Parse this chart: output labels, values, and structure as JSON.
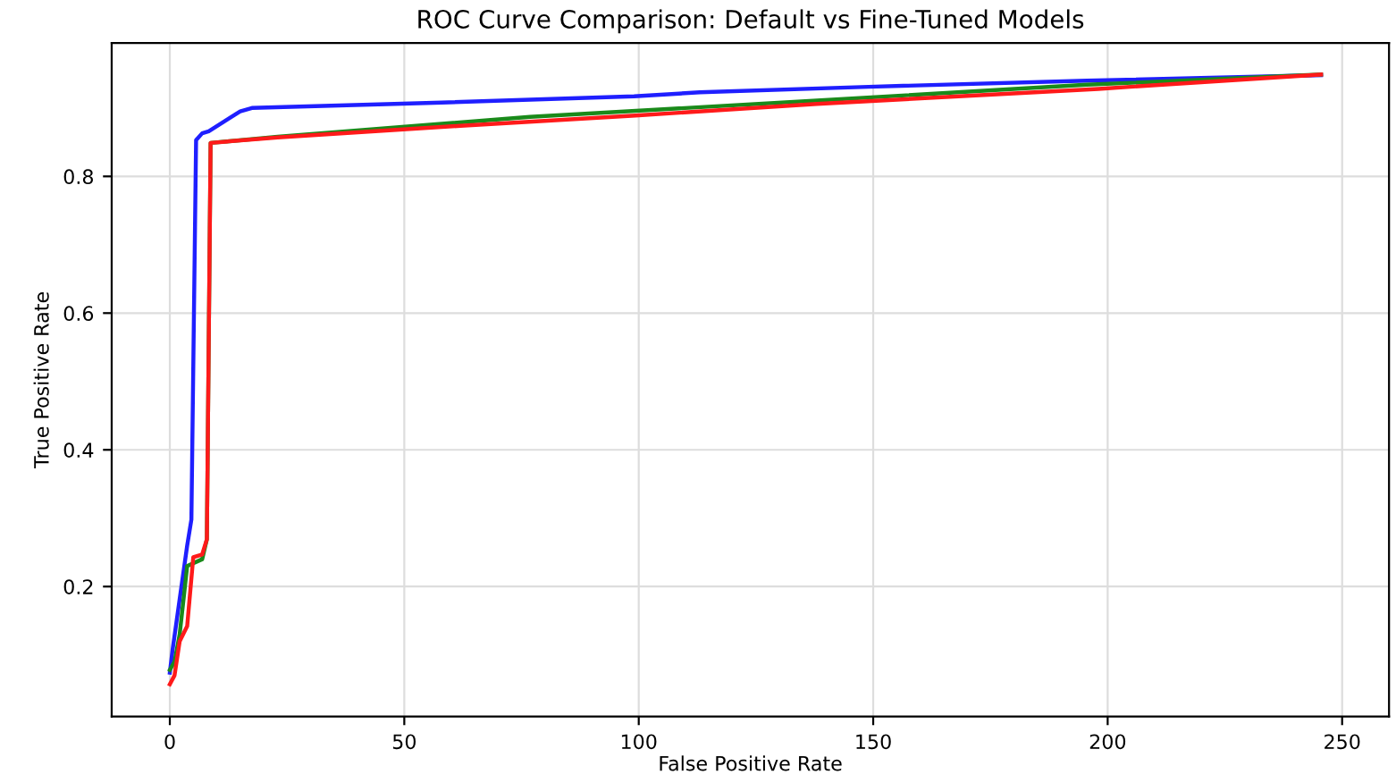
{
  "chart_data": {
    "type": "line",
    "title": "ROC Curve Comparison: Default vs Fine-Tuned Models",
    "xlabel": "False Positive Rate",
    "ylabel": "True Positive Rate",
    "xlim": [
      -12.4,
      260
    ],
    "ylim": [
      0.01,
      0.995
    ],
    "xticks": [
      0,
      50,
      100,
      150,
      200,
      250
    ],
    "yticks": [
      0.2,
      0.4,
      0.6,
      0.8
    ],
    "grid": true,
    "legend": false,
    "marker": "none",
    "line_style": "solid",
    "series": [
      {
        "color": "#1f1fff",
        "x": [
          0,
          0.6,
          3.7,
          4.6,
          5.6,
          6.9,
          8.3,
          13.1,
          15,
          17.5,
          58,
          99,
          113,
          149,
          195.5,
          245.5
        ],
        "values": [
          0.074,
          0.108,
          0.26,
          0.298,
          0.853,
          0.863,
          0.866,
          0.887,
          0.895,
          0.9,
          0.908,
          0.917,
          0.923,
          0.931,
          0.94,
          0.948
        ]
      },
      {
        "color": "#1a8a1a",
        "x": [
          0,
          1,
          2.1,
          3.7,
          6.9,
          7.9,
          8.7,
          23,
          76.8,
          135.5,
          195.5,
          245.5
        ],
        "values": [
          0.078,
          0.09,
          0.13,
          0.23,
          0.24,
          0.269,
          0.849,
          0.858,
          0.887,
          0.91,
          0.934,
          0.949
        ]
      },
      {
        "color": "#ff1a1a",
        "x": [
          0,
          1,
          2.1,
          3.7,
          5,
          6.9,
          7.9,
          8.7,
          23,
          62,
          99.3,
          138,
          198,
          245.5
        ],
        "values": [
          0.057,
          0.07,
          0.12,
          0.142,
          0.243,
          0.247,
          0.269,
          0.849,
          0.857,
          0.874,
          0.889,
          0.906,
          0.928,
          0.949
        ]
      }
    ]
  }
}
